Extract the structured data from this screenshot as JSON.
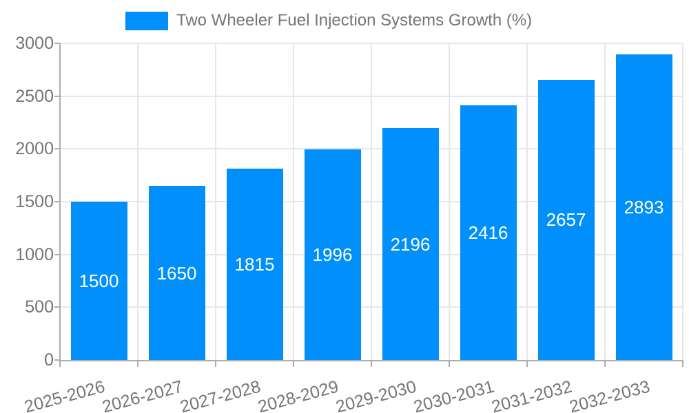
{
  "legend": {
    "label": "Two Wheeler Fuel Injection Systems Growth (%)"
  },
  "colors": {
    "bar": "#008FFB",
    "axis_text": "#757575",
    "grid": "#e7e7e7",
    "axis_line": "#adadad",
    "bar_label": "#ffffff",
    "background": "#ffffff"
  },
  "chart_data": {
    "type": "bar",
    "title": "Two Wheeler Fuel Injection Systems Growth (%)",
    "categories": [
      "2025-2026",
      "2026-2027",
      "2027-2028",
      "2028-2029",
      "2029-2030",
      "2030-2031",
      "2031-2032",
      "2032-2033"
    ],
    "values": [
      1500,
      1650,
      1815,
      1996,
      2196,
      2416,
      2657,
      2893
    ],
    "xlabel": "",
    "ylabel": "",
    "ylim": [
      0,
      3000
    ],
    "yticks": [
      0,
      500,
      1000,
      1500,
      2000,
      2500,
      3000
    ],
    "grid": true,
    "legend_position": "top",
    "legend_entries": [
      "Two Wheeler Fuel Injection Systems Growth (%)"
    ],
    "bar_labels_inside": true,
    "x_tick_rotation_deg": -15
  }
}
